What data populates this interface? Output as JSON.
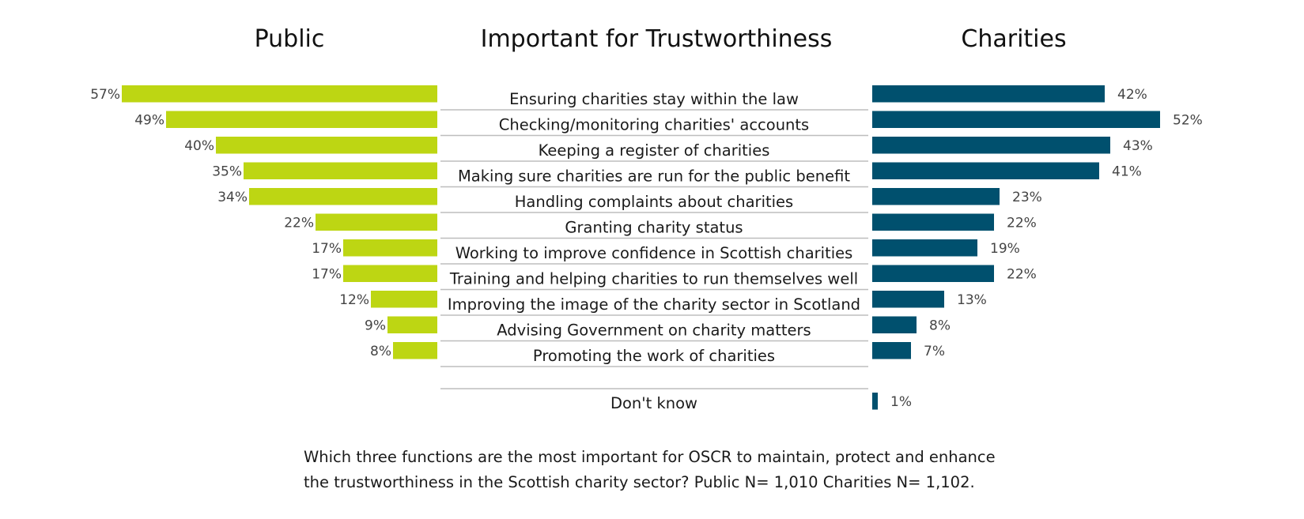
{
  "chart_data": {
    "type": "bar",
    "title": "Important for Trustworthiness",
    "left_heading": "Public",
    "right_heading": "Charities",
    "categories": [
      "Ensuring charities stay within the law",
      "Checking/monitoring charities' accounts",
      "Keeping a register of charities",
      "Making sure charities are run for the public benefit",
      "Handling complaints about charities",
      "Granting charity status",
      "Working to improve confidence in Scottish charities",
      "Training and helping charities to run themselves well",
      "Improving the image of the charity sector in Scotland",
      "Advising Government on charity matters",
      "Promoting the work of charities",
      "Don't know"
    ],
    "series": [
      {
        "name": "Public",
        "color": "#bdd613",
        "values": [
          57,
          49,
          40,
          35,
          34,
          22,
          17,
          17,
          12,
          9,
          8,
          null
        ],
        "labels": [
          "57%",
          "49%",
          "40%",
          "35%",
          "34%",
          "22%",
          "17%",
          "17%",
          "12%",
          "9%",
          "8%",
          null
        ]
      },
      {
        "name": "Charities",
        "color": "#00506e",
        "values": [
          42,
          52,
          43,
          41,
          23,
          22,
          19,
          22,
          13,
          8,
          7,
          1
        ],
        "labels": [
          "42%",
          "52%",
          "43%",
          "41%",
          "23%",
          "22%",
          "19%",
          "22%",
          "13%",
          "8%",
          "7%",
          "1%"
        ]
      }
    ],
    "grid": false,
    "legend": "none"
  },
  "footnote": {
    "line1": "Which three functions are the most important for OSCR to maintain, protect and enhance",
    "line2": "the trustworthiness in the Scottish charity sector? Public N= 1,010 Charities N= 1,102."
  }
}
